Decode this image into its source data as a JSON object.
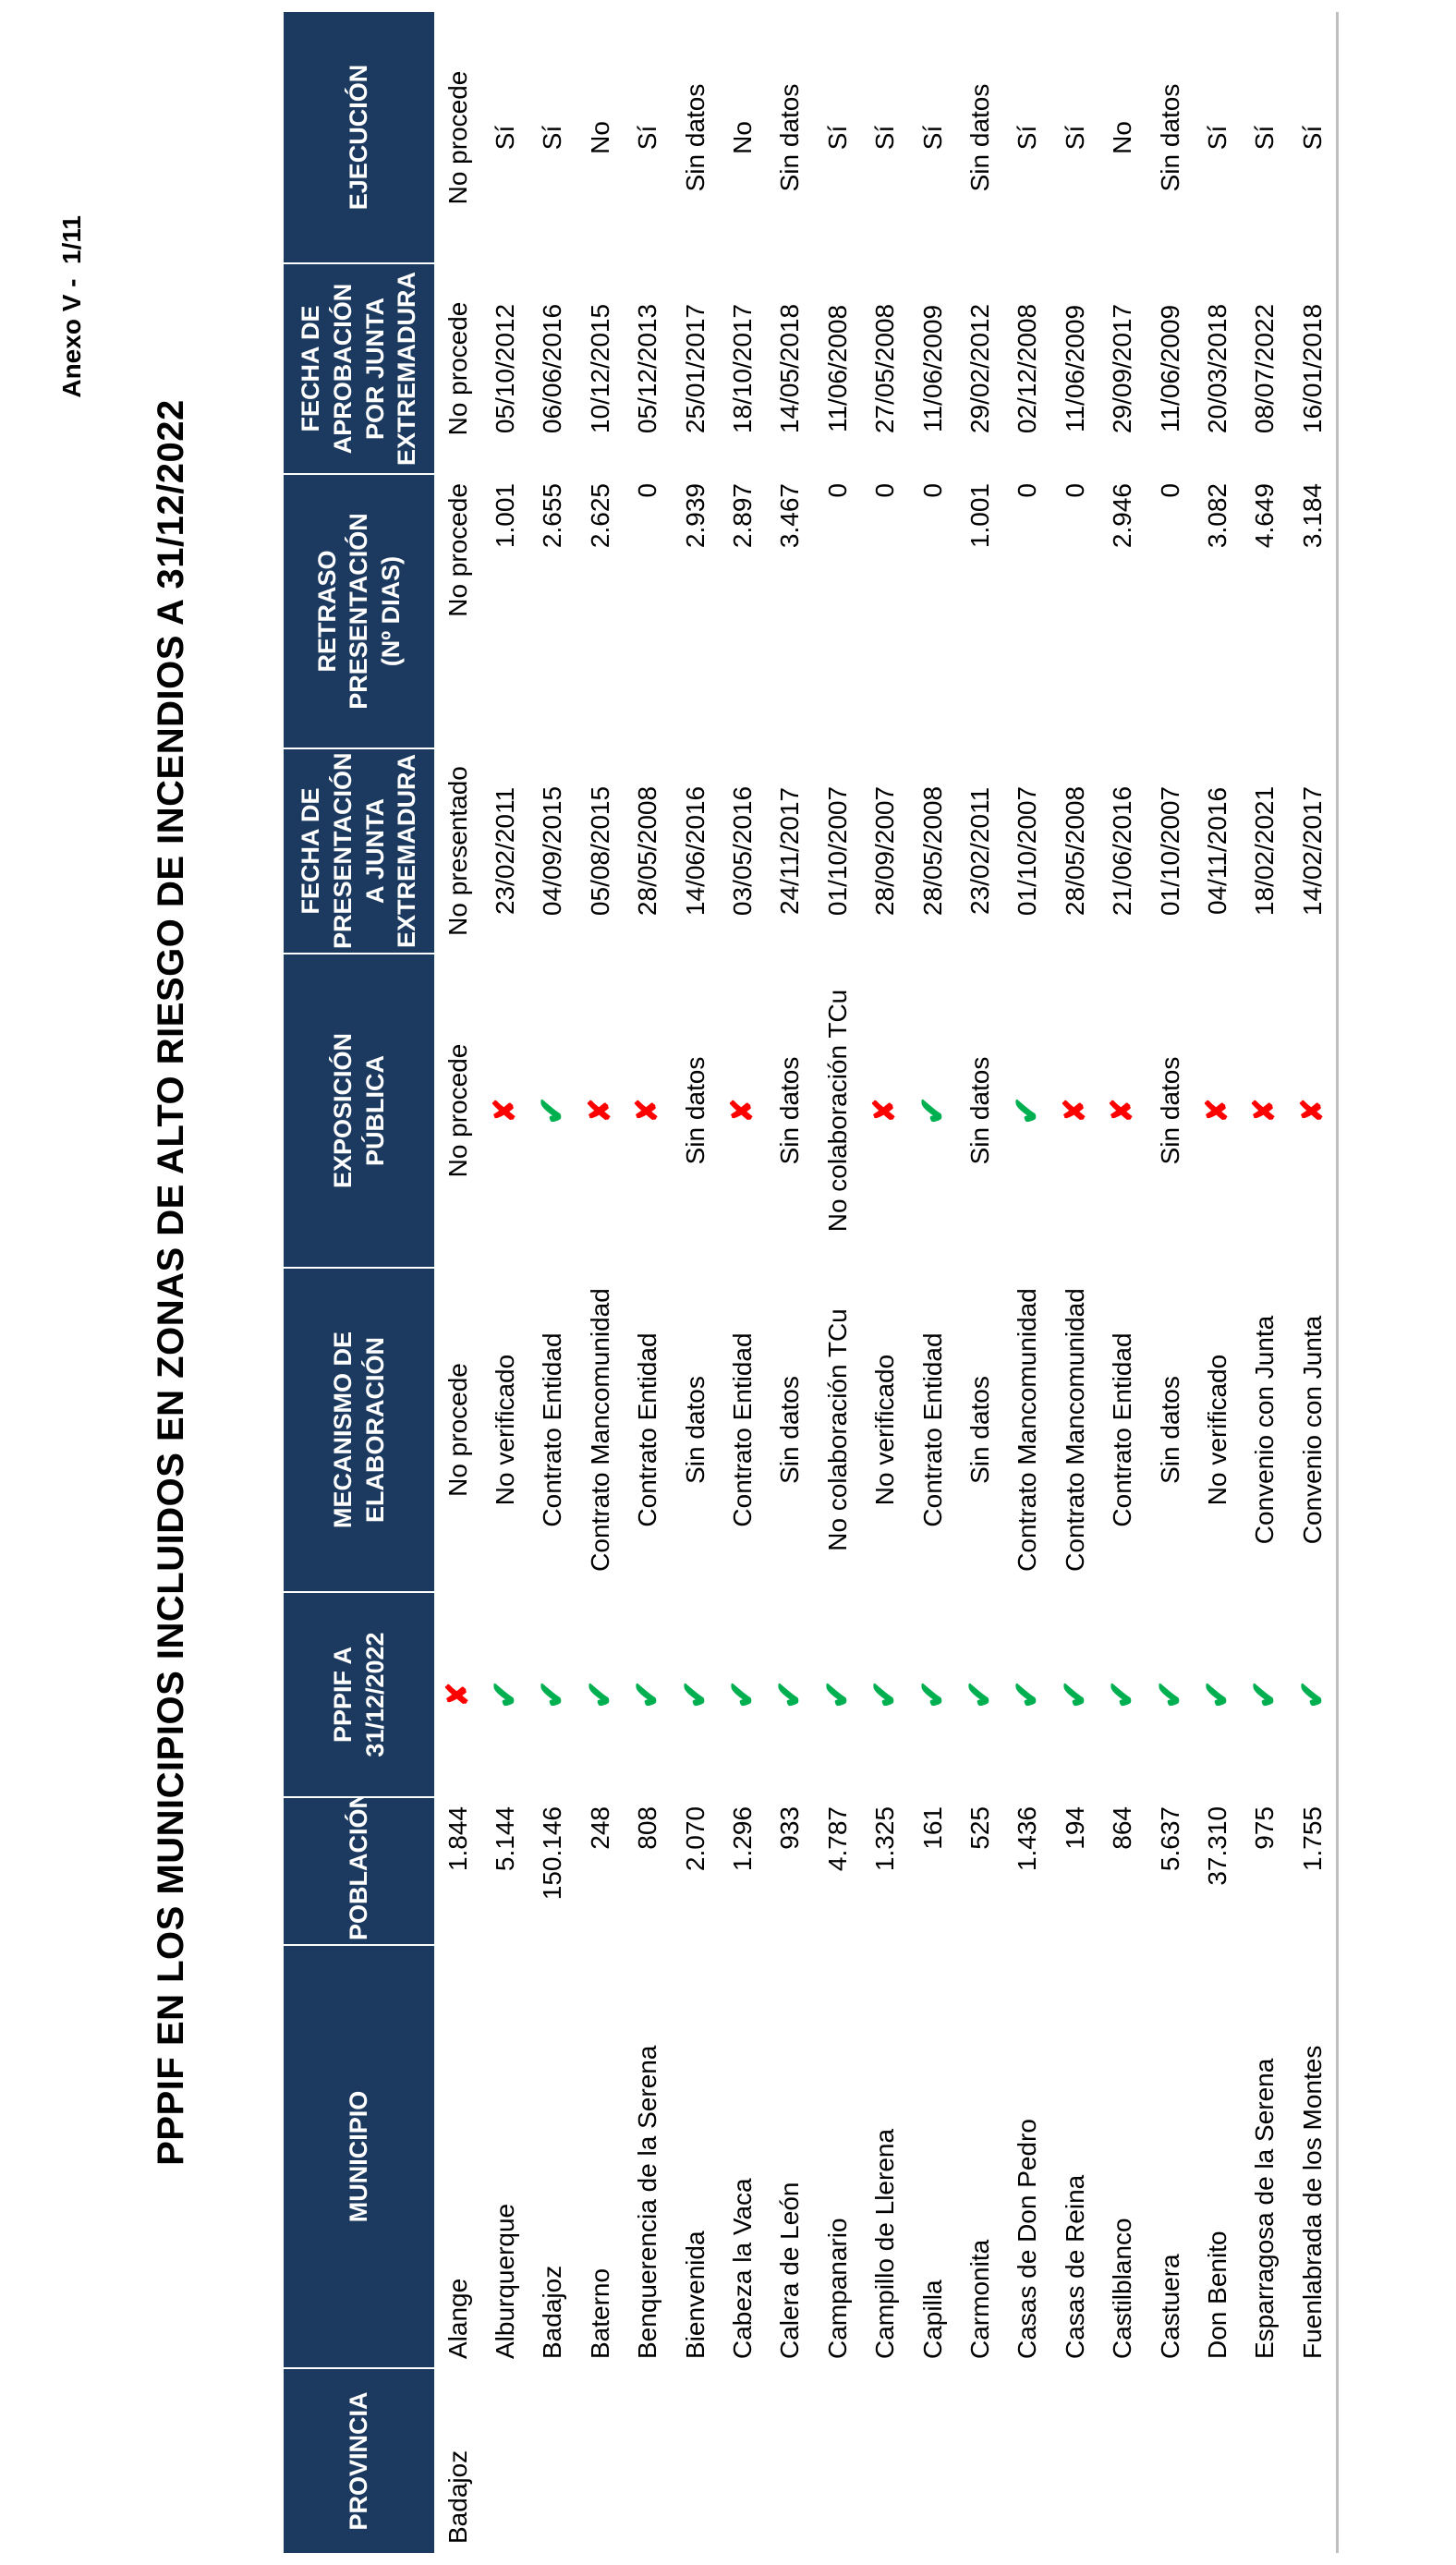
{
  "page": {
    "annex_label": "Anexo V -  1/11",
    "title": "PPPIF EN LOS MUNICIPIOS INCLUIDOS EN ZONAS DE ALTO RIESGO DE INCENDIOS A 31/12/2022"
  },
  "colors": {
    "header_navy": "#1C3A60",
    "check_green": "#00B050",
    "cross_red": "#FF0000",
    "edge_gray": "#BFBFBF"
  },
  "marks": {
    "check": "✔",
    "cross": "✘"
  },
  "table": {
    "headers": [
      "PROVINCIA",
      "MUNICIPIO",
      "POBLACIÓN",
      "PPPIF A\n31/12/2022",
      "MECANISMO DE\nELABORACIÓN",
      "EXPOSICIÓN\nPÚBLICA",
      "FECHA DE\nPRESENTACIÓN\nA JUNTA\nEXTREMADURA",
      "RETRASO\nPRESENTACIÓN\n(Nº DIAS)",
      "FECHA DE\nAPROBACIÓN\nPOR JUNTA\nEXTREMADURA",
      "EJECUCIÓN"
    ],
    "province": "Badajoz",
    "rows": [
      {
        "municipio": "Alange",
        "poblacion": "1.844",
        "pppif": "✘",
        "mecanismo": "No procede",
        "exposicion": "No procede",
        "fecha_presentacion": "No presentado",
        "retraso": "No procede",
        "fecha_aprobacion": "No procede",
        "ejecucion": "No procede"
      },
      {
        "municipio": "Alburquerque",
        "poblacion": "5.144",
        "pppif": "✔",
        "mecanismo": "No verificado",
        "exposicion": "✘",
        "fecha_presentacion": "23/02/2011",
        "retraso": "1.001",
        "fecha_aprobacion": "05/10/2012",
        "ejecucion": "Sí"
      },
      {
        "municipio": "Badajoz",
        "poblacion": "150.146",
        "pppif": "✔",
        "mecanismo": "Contrato Entidad",
        "exposicion": "✔",
        "fecha_presentacion": "04/09/2015",
        "retraso": "2.655",
        "fecha_aprobacion": "06/06/2016",
        "ejecucion": "Sí"
      },
      {
        "municipio": "Baterno",
        "poblacion": "248",
        "pppif": "✔",
        "mecanismo": "Contrato Mancomunidad",
        "exposicion": "✘",
        "fecha_presentacion": "05/08/2015",
        "retraso": "2.625",
        "fecha_aprobacion": "10/12/2015",
        "ejecucion": "No"
      },
      {
        "municipio": "Benquerencia de la Serena",
        "poblacion": "808",
        "pppif": "✔",
        "mecanismo": "Contrato Entidad",
        "exposicion": "✘",
        "fecha_presentacion": "28/05/2008",
        "retraso": "0",
        "fecha_aprobacion": "05/12/2013",
        "ejecucion": "Sí"
      },
      {
        "municipio": "Bienvenida",
        "poblacion": "2.070",
        "pppif": "✔",
        "mecanismo": "Sin datos",
        "exposicion": "Sin datos",
        "fecha_presentacion": "14/06/2016",
        "retraso": "2.939",
        "fecha_aprobacion": "25/01/2017",
        "ejecucion": "Sin datos"
      },
      {
        "municipio": "Cabeza la Vaca",
        "poblacion": "1.296",
        "pppif": "✔",
        "mecanismo": "Contrato Entidad",
        "exposicion": "✘",
        "fecha_presentacion": "03/05/2016",
        "retraso": "2.897",
        "fecha_aprobacion": "18/10/2017",
        "ejecucion": "No"
      },
      {
        "municipio": "Calera de León",
        "poblacion": "933",
        "pppif": "✔",
        "mecanismo": "Sin datos",
        "exposicion": "Sin datos",
        "fecha_presentacion": "24/11/2017",
        "retraso": "3.467",
        "fecha_aprobacion": "14/05/2018",
        "ejecucion": "Sin datos"
      },
      {
        "municipio": "Campanario",
        "poblacion": "4.787",
        "pppif": "✔",
        "mecanismo": "No colaboración TCu",
        "exposicion": "No colaboración TCu",
        "fecha_presentacion": "01/10/2007",
        "retraso": "0",
        "fecha_aprobacion": "11/06/2008",
        "ejecucion": "Sí"
      },
      {
        "municipio": "Campillo de Llerena",
        "poblacion": "1.325",
        "pppif": "✔",
        "mecanismo": "No verificado",
        "exposicion": "✘",
        "fecha_presentacion": "28/09/2007",
        "retraso": "0",
        "fecha_aprobacion": "27/05/2008",
        "ejecucion": "Sí"
      },
      {
        "municipio": "Capilla",
        "poblacion": "161",
        "pppif": "✔",
        "mecanismo": "Contrato Entidad",
        "exposicion": "✔",
        "fecha_presentacion": "28/05/2008",
        "retraso": "0",
        "fecha_aprobacion": "11/06/2009",
        "ejecucion": "Sí"
      },
      {
        "municipio": "Carmonita",
        "poblacion": "525",
        "pppif": "✔",
        "mecanismo": "Sin datos",
        "exposicion": "Sin datos",
        "fecha_presentacion": "23/02/2011",
        "retraso": "1.001",
        "fecha_aprobacion": "29/02/2012",
        "ejecucion": "Sin datos"
      },
      {
        "municipio": "Casas de Don Pedro",
        "poblacion": "1.436",
        "pppif": "✔",
        "mecanismo": "Contrato Mancomunidad",
        "exposicion": "✔",
        "fecha_presentacion": "01/10/2007",
        "retraso": "0",
        "fecha_aprobacion": "02/12/2008",
        "ejecucion": "Sí"
      },
      {
        "municipio": "Casas de Reina",
        "poblacion": "194",
        "pppif": "✔",
        "mecanismo": "Contrato Mancomunidad",
        "exposicion": "✘",
        "fecha_presentacion": "28/05/2008",
        "retraso": "0",
        "fecha_aprobacion": "11/06/2009",
        "ejecucion": "Sí"
      },
      {
        "municipio": "Castilblanco",
        "poblacion": "864",
        "pppif": "✔",
        "mecanismo": "Contrato Entidad",
        "exposicion": "✘",
        "fecha_presentacion": "21/06/2016",
        "retraso": "2.946",
        "fecha_aprobacion": "29/09/2017",
        "ejecucion": "No"
      },
      {
        "municipio": "Castuera",
        "poblacion": "5.637",
        "pppif": "✔",
        "mecanismo": "Sin datos",
        "exposicion": "Sin datos",
        "fecha_presentacion": "01/10/2007",
        "retraso": "0",
        "fecha_aprobacion": "11/06/2009",
        "ejecucion": "Sin datos"
      },
      {
        "municipio": "Don Benito",
        "poblacion": "37.310",
        "pppif": "✔",
        "mecanismo": "No verificado",
        "exposicion": "✘",
        "fecha_presentacion": "04/11/2016",
        "retraso": "3.082",
        "fecha_aprobacion": "20/03/2018",
        "ejecucion": "Sí"
      },
      {
        "municipio": "Esparragosa de la Serena",
        "poblacion": "975",
        "pppif": "✔",
        "mecanismo": "Convenio con Junta",
        "exposicion": "✘",
        "fecha_presentacion": "18/02/2021",
        "retraso": "4.649",
        "fecha_aprobacion": "08/07/2022",
        "ejecucion": "Sí"
      },
      {
        "municipio": "Fuenlabrada de los Montes",
        "poblacion": "1.755",
        "pppif": "✔",
        "mecanismo": "Convenio con Junta",
        "exposicion": "✘",
        "fecha_presentacion": "14/02/2017",
        "retraso": "3.184",
        "fecha_aprobacion": "16/01/2018",
        "ejecucion": "Sí"
      }
    ]
  }
}
